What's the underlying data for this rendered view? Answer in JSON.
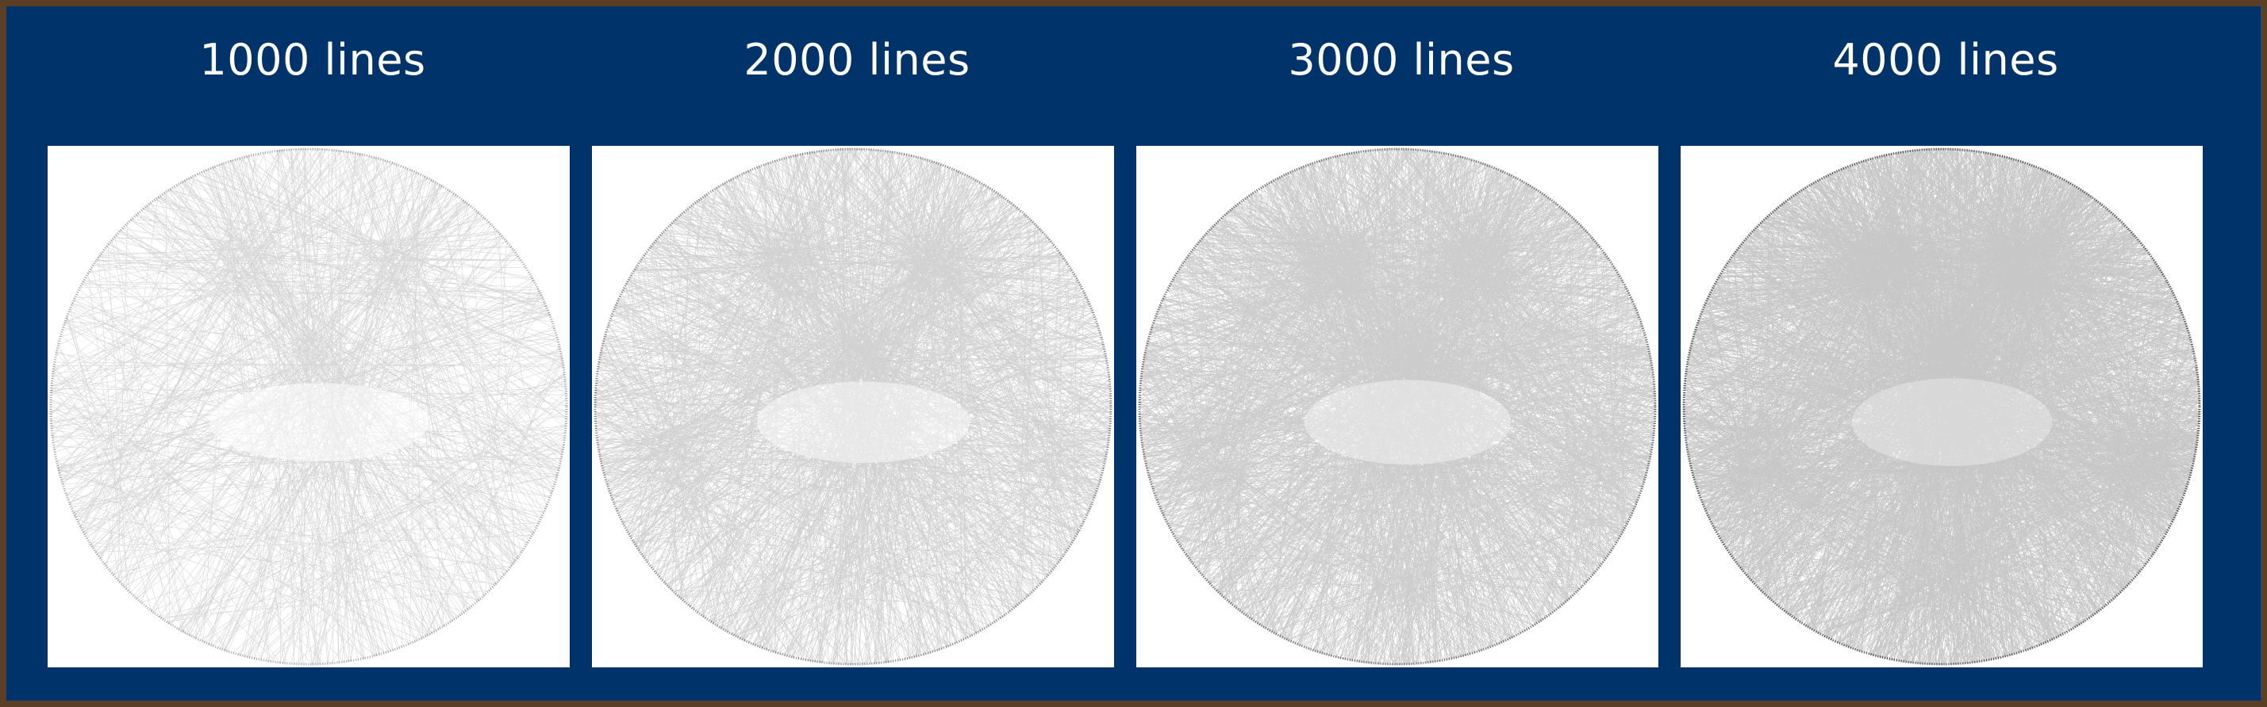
{
  "colors": {
    "border": "#5a3f26",
    "background": "#00336a",
    "text": "#ffffff",
    "panel": "#ffffff",
    "thread": "#000000"
  },
  "panels": [
    {
      "label": "1000 lines",
      "lines": 1000
    },
    {
      "label": "2000 lines",
      "lines": 2000
    },
    {
      "label": "3000 lines",
      "lines": 3000
    },
    {
      "label": "4000 lines",
      "lines": 4000
    }
  ]
}
